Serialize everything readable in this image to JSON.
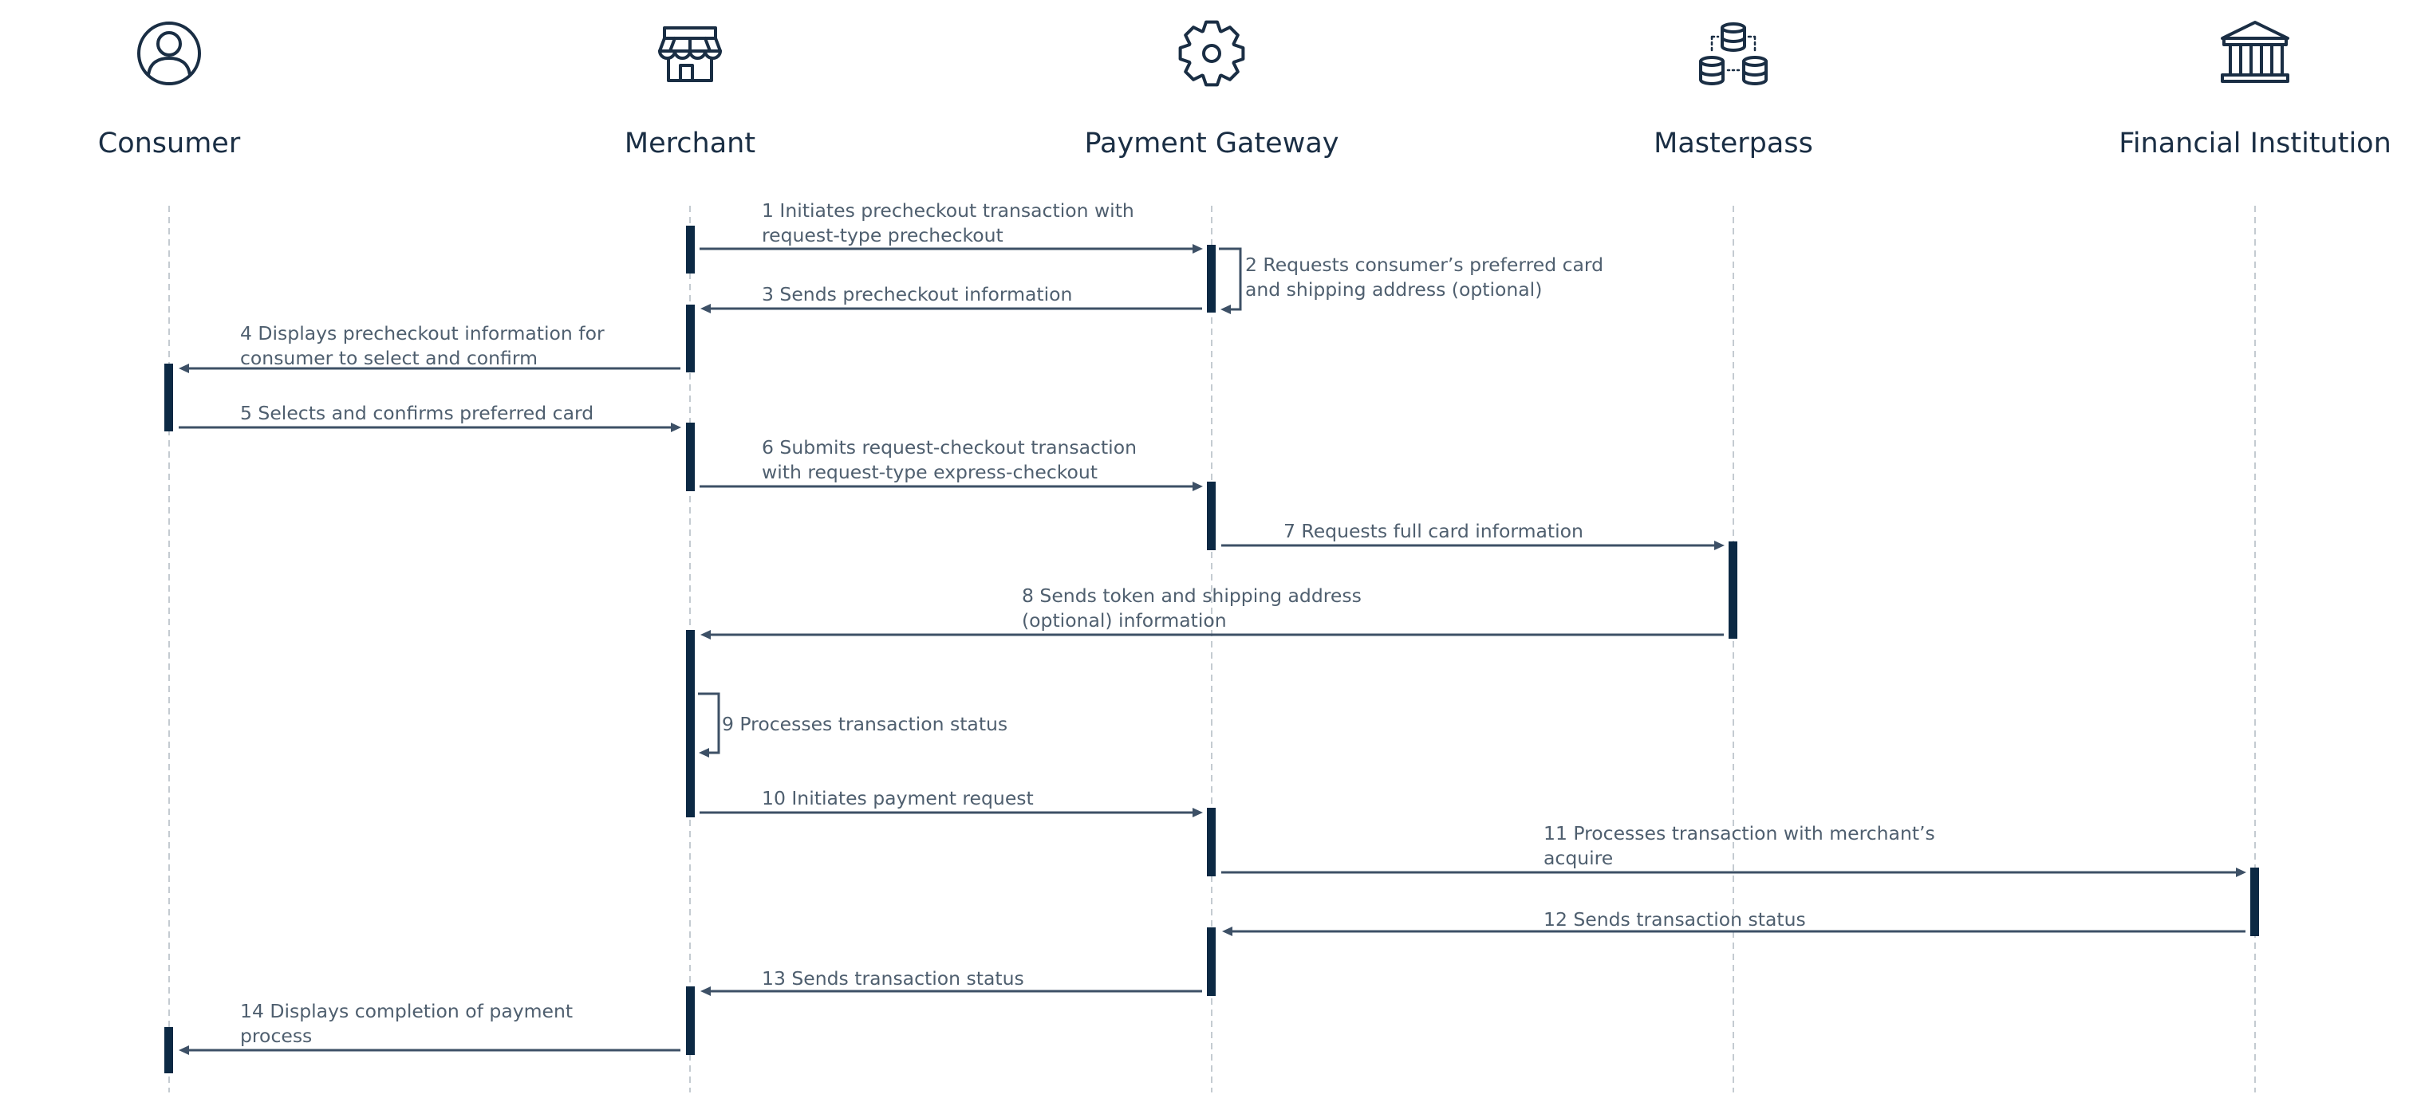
{
  "actors": [
    {
      "name": "Consumer",
      "icon": "user-icon"
    },
    {
      "name": "Merchant",
      "icon": "storefront-icon"
    },
    {
      "name": "Payment Gateway",
      "icon": "gear-icon"
    },
    {
      "name": "Masterpass",
      "icon": "database-stack-icon"
    },
    {
      "name": "Financial Institution",
      "icon": "bank-icon"
    }
  ],
  "messages": [
    {
      "step": 1,
      "from": "Merchant",
      "to": "Payment Gateway",
      "lines": [
        "1 Initiates precheckout transaction with",
        "request-type precheckout"
      ]
    },
    {
      "step": 2,
      "from": "Payment Gateway",
      "to": "Payment Gateway",
      "lines": [
        "2 Requests consumer’s preferred card",
        "and shipping address (optional)"
      ]
    },
    {
      "step": 3,
      "from": "Payment Gateway",
      "to": "Merchant",
      "lines": [
        "3 Sends precheckout information"
      ]
    },
    {
      "step": 4,
      "from": "Merchant",
      "to": "Consumer",
      "lines": [
        "4 Displays precheckout information for",
        "consumer to select and confirm"
      ]
    },
    {
      "step": 5,
      "from": "Consumer",
      "to": "Merchant",
      "lines": [
        "5 Selects and confirms preferred card"
      ]
    },
    {
      "step": 6,
      "from": "Merchant",
      "to": "Payment Gateway",
      "lines": [
        "6 Submits request-checkout transaction",
        "with request-type express-checkout"
      ]
    },
    {
      "step": 7,
      "from": "Payment Gateway",
      "to": "Masterpass",
      "lines": [
        "7 Requests full card information"
      ]
    },
    {
      "step": 8,
      "from": "Masterpass",
      "to": "Merchant",
      "lines": [
        "8 Sends token and shipping address",
        "(optional) information"
      ]
    },
    {
      "step": 9,
      "from": "Merchant",
      "to": "Merchant",
      "lines": [
        "9 Processes transaction status"
      ]
    },
    {
      "step": 10,
      "from": "Merchant",
      "to": "Payment Gateway",
      "lines": [
        "10 Initiates payment request"
      ]
    },
    {
      "step": 11,
      "from": "Payment Gateway",
      "to": "Financial Institution",
      "lines": [
        "11 Processes transaction with merchant’s",
        "acquire"
      ]
    },
    {
      "step": 12,
      "from": "Financial Institution",
      "to": "Payment Gateway",
      "lines": [
        "12 Sends transaction status"
      ]
    },
    {
      "step": 13,
      "from": "Payment Gateway",
      "to": "Merchant",
      "lines": [
        "13 Sends transaction status"
      ]
    },
    {
      "step": 14,
      "from": "Merchant",
      "to": "Consumer",
      "lines": [
        "14 Displays completion of payment",
        "process"
      ]
    }
  ],
  "colors": {
    "text": "#1a2e44",
    "label": "#4f5f6f",
    "arrow": "#3d5066",
    "activation": "#0c2944",
    "lifeline": "#c4cbd1"
  }
}
